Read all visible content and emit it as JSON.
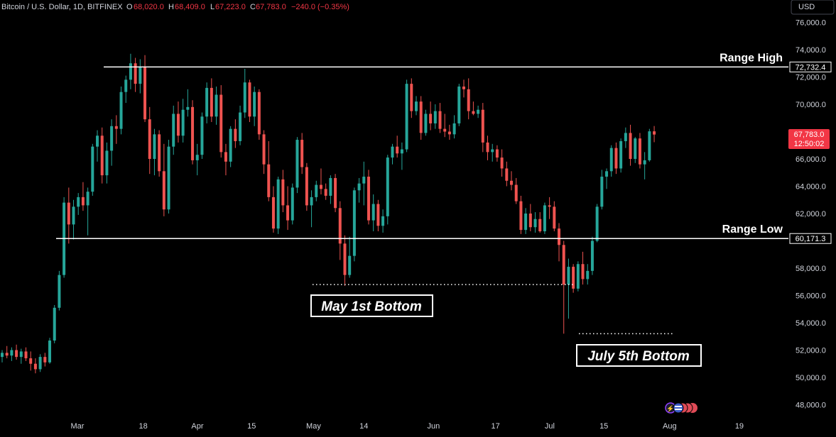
{
  "header": {
    "symbol": "Bitcoin / U.S. Dollar, 1D, BITFINEX",
    "open_key": "O",
    "open": "68,020.0",
    "high_key": "H",
    "high": "68,409.0",
    "low_key": "L",
    "low": "67,223.0",
    "close_key": "C",
    "close": "67,783.0",
    "change": "−240.0 (−0.35%)"
  },
  "currency_button": "USD",
  "price_tag": {
    "price": "67,783.0",
    "countdown": "12:50:02"
  },
  "colors": {
    "background": "#000000",
    "up": "#26a69a",
    "down": "#ef5350",
    "text": "#d1d4dc",
    "level_line": "#ffffff"
  },
  "chart_data": {
    "type": "candlestick",
    "title": "Bitcoin / U.S. Dollar, 1D, BITFINEX",
    "ylim": [
      47000,
      77000
    ],
    "y_ticks": [
      {
        "value": 48000,
        "label": "48,000.0"
      },
      {
        "value": 50000,
        "label": "50,000.0"
      },
      {
        "value": 52000,
        "label": "52,000.0"
      },
      {
        "value": 54000,
        "label": "54,000.0"
      },
      {
        "value": 56000,
        "label": "56,000.0"
      },
      {
        "value": 58000,
        "label": "58,000.0"
      },
      {
        "value": 62000,
        "label": "62,000.0"
      },
      {
        "value": 64000,
        "label": "64,000.0"
      },
      {
        "value": 66000,
        "label": "66,000.0"
      },
      {
        "value": 70000,
        "label": "70,000.0"
      },
      {
        "value": 72000,
        "label": "72,000.0"
      },
      {
        "value": 74000,
        "label": "74,000.0"
      },
      {
        "value": 76000,
        "label": "76,000.0"
      }
    ],
    "x_ticks": [
      {
        "date": "2024-03-01",
        "label": "Mar"
      },
      {
        "date": "2024-03-18",
        "label": "18"
      },
      {
        "date": "2024-04-01",
        "label": "Apr"
      },
      {
        "date": "2024-04-15",
        "label": "15"
      },
      {
        "date": "2024-05-01",
        "label": "May"
      },
      {
        "date": "2024-05-14",
        "label": "14"
      },
      {
        "date": "2024-06-01",
        "label": "Jun"
      },
      {
        "date": "2024-06-17",
        "label": "17"
      },
      {
        "date": "2024-07-01",
        "label": "Jul"
      },
      {
        "date": "2024-07-15",
        "label": "15"
      },
      {
        "date": "2024-08-01",
        "label": "Aug"
      },
      {
        "date": "2024-08-19",
        "label": "19"
      }
    ],
    "x_start": "2024-02-10",
    "x_end": "2024-08-19",
    "candles": [
      [
        51500,
        52000,
        51100,
        51800
      ],
      [
        51800,
        52300,
        51400,
        51600
      ],
      [
        51600,
        52200,
        51200,
        52000
      ],
      [
        52000,
        52400,
        51300,
        51500
      ],
      [
        51500,
        52100,
        51000,
        51900
      ],
      [
        51900,
        52200,
        51200,
        51400
      ],
      [
        51400,
        51900,
        50500,
        51000
      ],
      [
        51000,
        51400,
        50300,
        50600
      ],
      [
        50600,
        51700,
        50400,
        51500
      ],
      [
        51500,
        51800,
        50800,
        51100
      ],
      [
        51100,
        52900,
        51000,
        52700
      ],
      [
        52700,
        55300,
        52500,
        55100
      ],
      [
        55100,
        57800,
        54900,
        57500
      ],
      [
        57500,
        63200,
        57300,
        62800
      ],
      [
        62800,
        63900,
        59800,
        61200
      ],
      [
        61200,
        63000,
        60100,
        62500
      ],
      [
        62500,
        63500,
        61900,
        63200
      ],
      [
        63200,
        64300,
        62200,
        62600
      ],
      [
        62600,
        63900,
        60400,
        63600
      ],
      [
        63600,
        67100,
        63300,
        66900
      ],
      [
        66900,
        68100,
        65800,
        67700
      ],
      [
        67700,
        68300,
        64200,
        64800
      ],
      [
        64800,
        67200,
        64200,
        66600
      ],
      [
        66600,
        68900,
        65500,
        68400
      ],
      [
        68400,
        69200,
        67100,
        68200
      ],
      [
        68200,
        71300,
        67800,
        70900
      ],
      [
        70900,
        72100,
        70100,
        71800
      ],
      [
        71800,
        73700,
        71100,
        73000
      ],
      [
        73000,
        73400,
        70900,
        71500
      ],
      [
        71500,
        73300,
        70800,
        72700
      ],
      [
        72700,
        73600,
        68700,
        68900
      ],
      [
        68900,
        69800,
        64900,
        66000
      ],
      [
        66000,
        68200,
        64800,
        67800
      ],
      [
        67800,
        68100,
        64700,
        65100
      ],
      [
        65100,
        67100,
        61800,
        62300
      ],
      [
        62300,
        67400,
        62000,
        66900
      ],
      [
        66900,
        69900,
        66300,
        69300
      ],
      [
        69300,
        70200,
        67200,
        67700
      ],
      [
        67700,
        70400,
        67200,
        69600
      ],
      [
        69600,
        71100,
        69100,
        69800
      ],
      [
        69800,
        70300,
        65600,
        65900
      ],
      [
        65900,
        67100,
        64800,
        66300
      ],
      [
        66300,
        69400,
        66000,
        69100
      ],
      [
        69100,
        71600,
        68600,
        71200
      ],
      [
        71200,
        71900,
        68700,
        69100
      ],
      [
        69100,
        71300,
        68500,
        70700
      ],
      [
        70700,
        71400,
        66100,
        66500
      ],
      [
        66500,
        67100,
        64800,
        65800
      ],
      [
        65800,
        68400,
        65400,
        68200
      ],
      [
        68200,
        68900,
        66800,
        67300
      ],
      [
        67300,
        69900,
        67000,
        69400
      ],
      [
        69400,
        72600,
        69000,
        71600
      ],
      [
        71600,
        71800,
        68700,
        69100
      ],
      [
        69100,
        71300,
        68400,
        70900
      ],
      [
        70900,
        71100,
        67400,
        67800
      ],
      [
        67800,
        68100,
        64900,
        65600
      ],
      [
        65600,
        67300,
        62900,
        63200
      ],
      [
        63200,
        64000,
        60600,
        60900
      ],
      [
        60900,
        64700,
        60500,
        64500
      ],
      [
        64500,
        65200,
        62100,
        62600
      ],
      [
        62600,
        64000,
        60800,
        61500
      ],
      [
        61500,
        64200,
        61200,
        63900
      ],
      [
        63900,
        67600,
        63500,
        67400
      ],
      [
        67400,
        67900,
        64900,
        65400
      ],
      [
        65400,
        65700,
        62200,
        62600
      ],
      [
        62600,
        63700,
        61000,
        63200
      ],
      [
        63200,
        64400,
        62900,
        64100
      ],
      [
        64100,
        65300,
        63400,
        63800
      ],
      [
        63800,
        64200,
        63000,
        63300
      ],
      [
        63300,
        64800,
        62700,
        64600
      ],
      [
        64600,
        64900,
        62100,
        62400
      ],
      [
        62400,
        62900,
        58600,
        59800
      ],
      [
        59800,
        60400,
        56700,
        57500
      ],
      [
        57500,
        60300,
        57300,
        58900
      ],
      [
        58900,
        63900,
        58500,
        63700
      ],
      [
        63700,
        64600,
        62800,
        64200
      ],
      [
        64200,
        65800,
        62600,
        64700
      ],
      [
        64700,
        65200,
        61200,
        61500
      ],
      [
        61500,
        63400,
        60700,
        62700
      ],
      [
        62700,
        63000,
        60700,
        61100
      ],
      [
        61100,
        62300,
        60600,
        61800
      ],
      [
        61800,
        66300,
        61200,
        66100
      ],
      [
        66100,
        67100,
        65600,
        66900
      ],
      [
        66900,
        67700,
        66100,
        66400
      ],
      [
        66400,
        67200,
        65200,
        66700
      ],
      [
        66700,
        71800,
        66500,
        71500
      ],
      [
        71500,
        71900,
        69000,
        69500
      ],
      [
        69500,
        70600,
        69200,
        70200
      ],
      [
        70200,
        70600,
        67400,
        67900
      ],
      [
        67900,
        69600,
        67700,
        69300
      ],
      [
        69300,
        70200,
        68100,
        68600
      ],
      [
        68600,
        70000,
        68200,
        69500
      ],
      [
        69500,
        70100,
        67900,
        68200
      ],
      [
        68200,
        69300,
        67600,
        68000
      ],
      [
        68000,
        68500,
        67400,
        67800
      ],
      [
        67800,
        69200,
        67500,
        68600
      ],
      [
        68600,
        71500,
        68400,
        71300
      ],
      [
        71300,
        71800,
        70500,
        71100
      ],
      [
        71100,
        71900,
        68900,
        69500
      ],
      [
        69500,
        70200,
        69200,
        69300
      ],
      [
        69300,
        69900,
        69000,
        69600
      ],
      [
        69600,
        70100,
        66500,
        67200
      ],
      [
        67200,
        67700,
        65900,
        66500
      ],
      [
        66500,
        67100,
        65800,
        66700
      ],
      [
        66700,
        67000,
        65800,
        66100
      ],
      [
        66100,
        66700,
        64700,
        65300
      ],
      [
        65300,
        65800,
        64000,
        64400
      ],
      [
        64400,
        65100,
        63700,
        64100
      ],
      [
        64100,
        64600,
        62700,
        62900
      ],
      [
        62900,
        63300,
        60500,
        60800
      ],
      [
        60800,
        62400,
        60500,
        62000
      ],
      [
        62000,
        62700,
        60700,
        61000
      ],
      [
        61000,
        62100,
        60600,
        61600
      ],
      [
        61600,
        62100,
        60600,
        60700
      ],
      [
        60700,
        62800,
        60500,
        62600
      ],
      [
        62600,
        63200,
        61600,
        62500
      ],
      [
        62500,
        62900,
        60700,
        60900
      ],
      [
        60900,
        61300,
        58500,
        59700
      ],
      [
        59700,
        60000,
        53200,
        56800
      ],
      [
        56800,
        58700,
        54300,
        58100
      ],
      [
        58100,
        58300,
        56200,
        56500
      ],
      [
        56500,
        58500,
        56300,
        58300
      ],
      [
        58300,
        59200,
        56800,
        57200
      ],
      [
        57200,
        58300,
        56800,
        57800
      ],
      [
        57800,
        60300,
        57500,
        60000
      ],
      [
        60000,
        62700,
        59900,
        62500
      ],
      [
        62500,
        65200,
        62300,
        64700
      ],
      [
        64700,
        65300,
        63800,
        65100
      ],
      [
        65100,
        67000,
        64700,
        66800
      ],
      [
        66800,
        67200,
        64900,
        65300
      ],
      [
        65300,
        67500,
        65000,
        67300
      ],
      [
        67300,
        68300,
        66800,
        67900
      ],
      [
        67900,
        68500,
        65500,
        66000
      ],
      [
        66000,
        67600,
        65700,
        67500
      ],
      [
        67500,
        67900,
        65300,
        65600
      ],
      [
        65600,
        66500,
        64500,
        65900
      ],
      [
        65900,
        68200,
        65800,
        68020
      ],
      [
        68020,
        68409,
        67223,
        67783
      ]
    ],
    "levels": [
      {
        "name": "Range High",
        "value": 72732.4,
        "label": "72,732.4"
      },
      {
        "name": "Range Low",
        "value": 60171.3,
        "label": "60,171.3"
      }
    ],
    "bottoms": [
      {
        "name": "May 1st Bottom",
        "value": 56800
      },
      {
        "name": "July 5th Bottom",
        "value": 53200
      }
    ]
  }
}
